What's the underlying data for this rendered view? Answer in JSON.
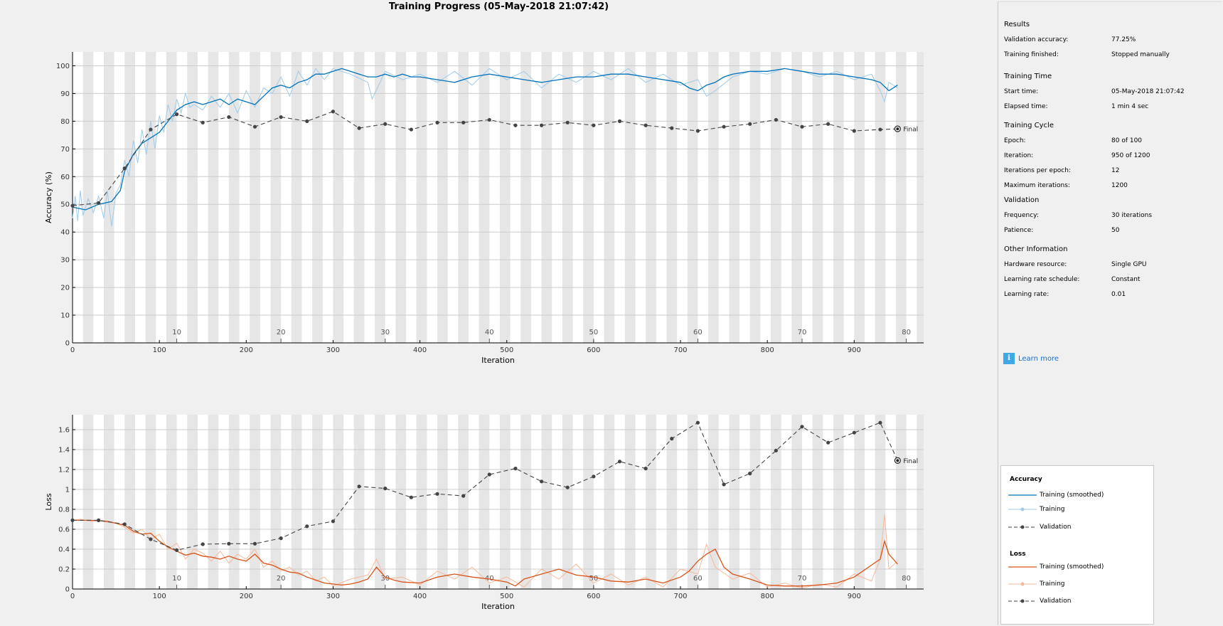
{
  "title": "Training Progress (05-May-2018 21:07:42)",
  "colors": {
    "acc_smooth": "#0072bd",
    "acc_raw": "#9ecae8",
    "loss_smooth": "#d95319",
    "loss_raw": "#f5b99a",
    "validation": "#444444",
    "grid": "#cccccc",
    "epoch_band": "#e6e6e6"
  },
  "panel": {
    "sections": [
      {
        "title": "Results",
        "rows": [
          {
            "k": "Validation accuracy:",
            "v": "77.25%"
          },
          {
            "k": "Training finished:",
            "v": "Stopped manually"
          }
        ]
      },
      {
        "title": "Training Time",
        "rows": [
          {
            "k": "Start time:",
            "v": "05-May-2018 21:07:42"
          },
          {
            "k": "Elapsed time:",
            "v": "1 min 4 sec"
          }
        ]
      },
      {
        "title": "Training Cycle",
        "rows": [
          {
            "k": "Epoch:",
            "v": "80 of 100"
          },
          {
            "k": "Iteration:",
            "v": "950 of 1200"
          },
          {
            "k": "Iterations per epoch:",
            "v": "12"
          },
          {
            "k": "Maximum iterations:",
            "v": "1200"
          }
        ]
      },
      {
        "title": "Validation",
        "rows": [
          {
            "k": "Frequency:",
            "v": "30 iterations"
          },
          {
            "k": "Patience:",
            "v": "50"
          }
        ]
      },
      {
        "title": "Other Information",
        "rows": [
          {
            "k": "Hardware resource:",
            "v": "Single GPU"
          },
          {
            "k": "Learning rate schedule:",
            "v": "Constant"
          },
          {
            "k": "Learning rate:",
            "v": "0.01"
          }
        ]
      }
    ],
    "learn_more": "Learn more",
    "legend": {
      "accuracy_title": "Accuracy",
      "loss_title": "Loss",
      "items": [
        "Training (smoothed)",
        "Training",
        "Validation"
      ]
    }
  },
  "chart_data": [
    {
      "type": "line",
      "xlabel": "Iteration",
      "ylabel": "Accuracy (%)",
      "xlim": [
        0,
        980
      ],
      "ylim": [
        0,
        105
      ],
      "xticks": [
        0,
        100,
        200,
        300,
        400,
        500,
        600,
        700,
        800,
        900
      ],
      "yticks": [
        0,
        10,
        20,
        30,
        40,
        50,
        60,
        70,
        80,
        90,
        100
      ],
      "epoch_labels": [
        "10",
        "20",
        "30",
        "40",
        "50",
        "60",
        "70",
        "80"
      ],
      "iterations_per_epoch": 12,
      "final_label": "Final",
      "grid": true,
      "series": [
        {
          "name": "Training (smoothed)",
          "x": [
            0,
            15,
            30,
            45,
            55,
            60,
            70,
            80,
            90,
            100,
            110,
            120,
            130,
            140,
            150,
            160,
            170,
            180,
            190,
            200,
            210,
            220,
            230,
            240,
            250,
            260,
            270,
            280,
            290,
            300,
            310,
            320,
            330,
            340,
            350,
            360,
            370,
            380,
            390,
            400,
            420,
            440,
            460,
            480,
            500,
            520,
            540,
            560,
            580,
            600,
            620,
            640,
            660,
            680,
            700,
            710,
            720,
            730,
            740,
            750,
            760,
            780,
            800,
            820,
            840,
            860,
            880,
            900,
            920,
            930,
            940,
            950
          ],
          "y": [
            49,
            48,
            50,
            51,
            55,
            62,
            68,
            72,
            74,
            76,
            80,
            84,
            86,
            87,
            86,
            87,
            88,
            86,
            88,
            87,
            86,
            89,
            92,
            93,
            92,
            94,
            95,
            97,
            97,
            98,
            99,
            98,
            97,
            96,
            96,
            97,
            96,
            97,
            96,
            96,
            95,
            94,
            96,
            97,
            96,
            95,
            94,
            95,
            96,
            96,
            97,
            97,
            96,
            95,
            94,
            92,
            91,
            93,
            94,
            96,
            97,
            98,
            98,
            99,
            98,
            97,
            97,
            96,
            95,
            94,
            91,
            93
          ]
        },
        {
          "name": "Training",
          "x": [
            0,
            3,
            6,
            9,
            12,
            18,
            24,
            30,
            36,
            40,
            45,
            50,
            55,
            60,
            65,
            70,
            75,
            80,
            85,
            90,
            95,
            100,
            105,
            110,
            115,
            120,
            125,
            130,
            135,
            140,
            150,
            160,
            170,
            180,
            190,
            200,
            210,
            220,
            230,
            240,
            250,
            260,
            270,
            280,
            290,
            300,
            320,
            340,
            345,
            360,
            380,
            400,
            420,
            440,
            460,
            480,
            500,
            520,
            540,
            560,
            580,
            600,
            620,
            640,
            660,
            680,
            700,
            720,
            730,
            740,
            760,
            780,
            800,
            820,
            840,
            860,
            880,
            900,
            920,
            930,
            935,
            940,
            950
          ],
          "y": [
            45,
            53,
            44,
            55,
            46,
            52,
            47,
            53,
            45,
            55,
            42,
            54,
            57,
            66,
            60,
            73,
            65,
            77,
            68,
            80,
            70,
            82,
            76,
            86,
            80,
            88,
            83,
            90,
            85,
            86,
            84,
            89,
            85,
            90,
            83,
            91,
            85,
            92,
            90,
            96,
            89,
            98,
            93,
            99,
            95,
            99,
            97,
            94,
            88,
            98,
            95,
            97,
            94,
            98,
            93,
            99,
            95,
            98,
            92,
            97,
            94,
            98,
            95,
            99,
            94,
            97,
            93,
            95,
            89,
            91,
            96,
            98,
            97,
            99,
            98,
            96,
            98,
            95,
            97,
            91,
            87,
            94,
            92
          ]
        },
        {
          "name": "Validation",
          "x": [
            0,
            30,
            60,
            90,
            120,
            150,
            180,
            210,
            240,
            270,
            300,
            330,
            360,
            390,
            420,
            450,
            480,
            510,
            540,
            570,
            600,
            630,
            660,
            690,
            720,
            750,
            780,
            810,
            840,
            870,
            900,
            930,
            950
          ],
          "y": [
            49.5,
            50.5,
            63,
            77,
            82.5,
            79.5,
            81.5,
            78,
            81.5,
            80,
            83.5,
            77.5,
            79,
            77,
            79.5,
            79.5,
            80.5,
            78.5,
            78.5,
            79.5,
            78.5,
            80,
            78.5,
            77.5,
            76.5,
            78,
            79,
            80.5,
            78,
            79,
            76.5,
            77,
            77.25
          ]
        }
      ]
    },
    {
      "type": "line",
      "xlabel": "Iteration",
      "ylabel": "Loss",
      "xlim": [
        0,
        980
      ],
      "ylim": [
        0,
        1.75
      ],
      "xticks": [
        0,
        100,
        200,
        300,
        400,
        500,
        600,
        700,
        800,
        900
      ],
      "yticks": [
        0,
        0.2,
        0.4,
        0.6,
        0.8,
        1,
        1.2,
        1.4,
        1.6
      ],
      "ytick_labels": [
        "0",
        "0.2",
        "0.4",
        "0.6",
        "0.8",
        "1",
        "1.2",
        "1.4",
        "1.6"
      ],
      "epoch_labels": [
        "10",
        "20",
        "30",
        "40",
        "50",
        "60",
        "70",
        "80"
      ],
      "iterations_per_epoch": 12,
      "final_label": "Final",
      "grid": true,
      "series": [
        {
          "name": "Training (smoothed)",
          "x": [
            0,
            20,
            40,
            60,
            70,
            80,
            90,
            100,
            110,
            120,
            130,
            140,
            150,
            160,
            170,
            180,
            190,
            200,
            210,
            220,
            230,
            240,
            250,
            260,
            270,
            280,
            290,
            300,
            310,
            320,
            330,
            340,
            350,
            360,
            370,
            380,
            400,
            420,
            440,
            460,
            480,
            500,
            510,
            520,
            540,
            560,
            580,
            600,
            620,
            640,
            660,
            680,
            700,
            710,
            720,
            730,
            740,
            750,
            760,
            780,
            800,
            820,
            840,
            860,
            880,
            900,
            910,
            920,
            930,
            935,
            940,
            950
          ],
          "y": [
            0.69,
            0.69,
            0.68,
            0.64,
            0.58,
            0.55,
            0.56,
            0.48,
            0.42,
            0.38,
            0.34,
            0.36,
            0.33,
            0.32,
            0.3,
            0.33,
            0.3,
            0.28,
            0.35,
            0.26,
            0.24,
            0.2,
            0.17,
            0.16,
            0.12,
            0.09,
            0.06,
            0.05,
            0.04,
            0.05,
            0.07,
            0.1,
            0.22,
            0.12,
            0.09,
            0.07,
            0.06,
            0.12,
            0.15,
            0.12,
            0.1,
            0.07,
            0.03,
            0.1,
            0.15,
            0.2,
            0.14,
            0.12,
            0.08,
            0.07,
            0.1,
            0.06,
            0.12,
            0.18,
            0.28,
            0.35,
            0.4,
            0.22,
            0.15,
            0.1,
            0.04,
            0.03,
            0.03,
            0.04,
            0.06,
            0.12,
            0.18,
            0.24,
            0.3,
            0.48,
            0.35,
            0.25
          ]
        },
        {
          "name": "Training",
          "x": [
            0,
            10,
            20,
            30,
            40,
            50,
            60,
            70,
            80,
            90,
            100,
            110,
            120,
            130,
            140,
            150,
            160,
            170,
            180,
            190,
            200,
            210,
            220,
            230,
            240,
            250,
            260,
            270,
            280,
            290,
            300,
            320,
            340,
            350,
            360,
            380,
            400,
            420,
            440,
            460,
            480,
            500,
            520,
            540,
            560,
            580,
            600,
            620,
            640,
            660,
            680,
            700,
            720,
            730,
            740,
            760,
            780,
            800,
            820,
            840,
            860,
            880,
            900,
            920,
            930,
            935,
            940,
            950
          ],
          "y": [
            0.69,
            0.7,
            0.68,
            0.69,
            0.67,
            0.66,
            0.62,
            0.56,
            0.6,
            0.5,
            0.55,
            0.4,
            0.46,
            0.3,
            0.4,
            0.36,
            0.28,
            0.38,
            0.26,
            0.35,
            0.3,
            0.4,
            0.22,
            0.28,
            0.18,
            0.22,
            0.14,
            0.18,
            0.08,
            0.12,
            0.03,
            0.1,
            0.14,
            0.3,
            0.1,
            0.12,
            0.04,
            0.18,
            0.1,
            0.22,
            0.06,
            0.12,
            0.02,
            0.2,
            0.1,
            0.25,
            0.06,
            0.15,
            0.04,
            0.12,
            0.02,
            0.2,
            0.15,
            0.45,
            0.22,
            0.1,
            0.16,
            0.02,
            0.06,
            0.01,
            0.05,
            0.02,
            0.15,
            0.08,
            0.3,
            0.75,
            0.2,
            0.28
          ]
        },
        {
          "name": "Validation",
          "x": [
            0,
            30,
            60,
            90,
            120,
            150,
            180,
            210,
            240,
            270,
            300,
            330,
            360,
            390,
            420,
            450,
            480,
            510,
            540,
            570,
            600,
            630,
            660,
            690,
            720,
            750,
            780,
            810,
            840,
            870,
            900,
            930,
            950
          ],
          "y": [
            0.69,
            0.69,
            0.65,
            0.5,
            0.39,
            0.45,
            0.455,
            0.455,
            0.51,
            0.63,
            0.68,
            1.03,
            1.01,
            0.92,
            0.955,
            0.935,
            1.15,
            1.21,
            1.08,
            1.02,
            1.13,
            1.28,
            1.21,
            1.51,
            1.67,
            1.05,
            1.16,
            1.39,
            1.63,
            1.47,
            1.57,
            1.67,
            1.29
          ]
        }
      ]
    }
  ]
}
